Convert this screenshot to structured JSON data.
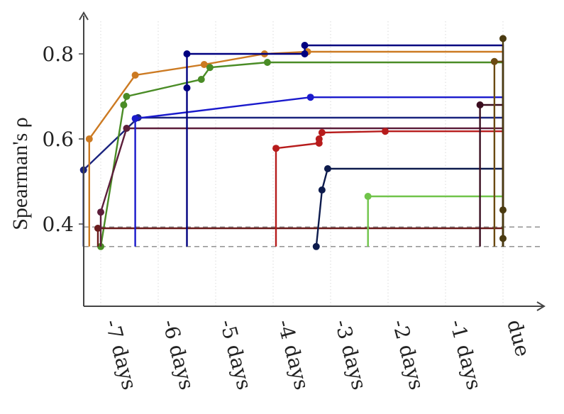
{
  "chart_data": {
    "type": "line",
    "step": "post",
    "ylabel": "Spearman's ρ",
    "xlabel": "",
    "xlim": [
      -7.3,
      0.55
    ],
    "ylim": [
      0.2,
      0.9
    ],
    "x_ticks": [
      -7,
      -6,
      -5,
      -4,
      -3,
      -2,
      -1,
      0
    ],
    "x_tick_labels": [
      "-7 days",
      "-6 days",
      "-5 days",
      "-4 days",
      "-3 days",
      "-2 days",
      "-1 days",
      "due"
    ],
    "y_ticks": [
      0.4,
      0.6,
      0.8
    ],
    "y_tick_labels": [
      "0.4",
      "0.6",
      "0.8"
    ],
    "grid": "vertical",
    "reference_lines": [
      0.393,
      0.347
    ],
    "line_floor": 0.347,
    "line_end": 0.0,
    "series": [
      {
        "color": "#1a237e",
        "values": [
          [
            -7.3,
            0.527
          ],
          [
            -6.35,
            0.65
          ]
        ]
      },
      {
        "color": "#cc7a22",
        "values": [
          [
            -7.2,
            0.6
          ],
          [
            -6.4,
            0.75
          ],
          [
            -5.2,
            0.775
          ],
          [
            -4.15,
            0.8
          ],
          [
            -3.4,
            0.805
          ]
        ]
      },
      {
        "color": "#4a8c26",
        "values": [
          [
            -7.0,
            0.347
          ],
          [
            -6.6,
            0.68
          ],
          [
            -6.55,
            0.7
          ],
          [
            -5.25,
            0.74
          ],
          [
            -5.1,
            0.768
          ],
          [
            -4.1,
            0.78
          ]
        ]
      },
      {
        "color": "#6a1b1b",
        "values": [
          [
            -7.05,
            0.39
          ]
        ]
      },
      {
        "color": "#5c1e3a",
        "values": [
          [
            -7.0,
            0.428
          ],
          [
            -6.55,
            0.625
          ]
        ]
      },
      {
        "color": "#1a1acc",
        "values": [
          [
            -6.4,
            0.648
          ],
          [
            -3.35,
            0.698
          ]
        ]
      },
      {
        "color": "#000080",
        "values": [
          [
            -5.5,
            0.72
          ],
          [
            -5.5,
            0.8
          ],
          [
            -3.45,
            0.8
          ],
          [
            -3.45,
            0.82
          ]
        ]
      },
      {
        "color": "#b71c1c",
        "values": [
          [
            -3.95,
            0.578
          ],
          [
            -3.2,
            0.59
          ],
          [
            -3.2,
            0.6
          ],
          [
            -3.15,
            0.615
          ],
          [
            -2.05,
            0.618
          ]
        ]
      },
      {
        "color": "#0d1b4d",
        "values": [
          [
            -3.25,
            0.347
          ],
          [
            -3.15,
            0.48
          ],
          [
            -3.05,
            0.53
          ]
        ]
      },
      {
        "color": "#70c44a",
        "values": [
          [
            -2.35,
            0.465
          ]
        ]
      },
      {
        "color": "#3a0d1f",
        "values": [
          [
            -0.4,
            0.68
          ]
        ]
      },
      {
        "color": "#6b4a12",
        "values": [
          [
            -0.15,
            0.782
          ]
        ]
      },
      {
        "color": "#4a3a10",
        "values": [
          [
            0.0,
            0.836
          ],
          [
            0.0,
            0.433
          ],
          [
            0.0,
            0.366
          ]
        ]
      }
    ]
  }
}
